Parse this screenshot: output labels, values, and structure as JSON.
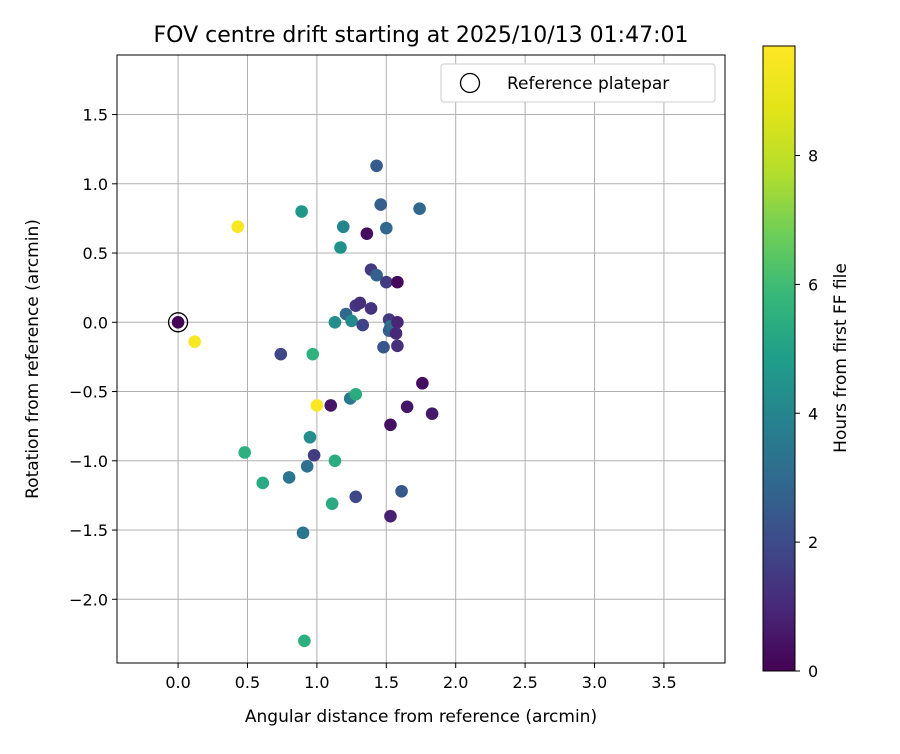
{
  "chart_data": {
    "type": "scatter",
    "title": "FOV centre drift starting at 2025/10/13 01:47:01",
    "xlabel": "Angular distance from reference (arcmin)",
    "ylabel": "Rotation from reference (arcmin)",
    "xlim": [
      -0.44,
      3.94
    ],
    "ylim": [
      -2.46,
      1.93
    ],
    "xticks": [
      "0.0",
      "0.5",
      "1.0",
      "1.5",
      "2.0",
      "2.5",
      "3.0",
      "3.5"
    ],
    "xtick_values": [
      0,
      0.5,
      1.0,
      1.5,
      2.0,
      2.5,
      3.0,
      3.5
    ],
    "yticks": [
      "1.5",
      "1.0",
      "0.5",
      "0.0",
      "−0.5",
      "−1.0",
      "−1.5",
      "−2.0"
    ],
    "ytick_values": [
      1.5,
      1.0,
      0.5,
      0.0,
      -0.5,
      -1.0,
      -1.5,
      -2.0
    ],
    "grid": true,
    "legend": {
      "placement": "top-right",
      "entries": [
        "Reference platepar"
      ]
    },
    "colorbar": {
      "label": "Hours from first FF file",
      "range": [
        0,
        9.7
      ],
      "ticks": [
        "0",
        "2",
        "4",
        "6",
        "8"
      ],
      "tick_values": [
        0,
        2,
        4,
        6,
        8
      ],
      "colormap": "viridis"
    },
    "reference_point": {
      "x": 0.0,
      "y": 0.0
    },
    "points": [
      {
        "x": 0.0,
        "y": 0.0,
        "hours": 0.0
      },
      {
        "x": 0.12,
        "y": -0.14,
        "hours": 9.6
      },
      {
        "x": 0.43,
        "y": 0.69,
        "hours": 9.5
      },
      {
        "x": 0.74,
        "y": -0.23,
        "hours": 1.9
      },
      {
        "x": 0.89,
        "y": 0.8,
        "hours": 4.6
      },
      {
        "x": 0.97,
        "y": -0.23,
        "hours": 5.6
      },
      {
        "x": 1.0,
        "y": -0.6,
        "hours": 9.6
      },
      {
        "x": 1.1,
        "y": -0.6,
        "hours": 0.5
      },
      {
        "x": 0.95,
        "y": -0.83,
        "hours": 4.3
      },
      {
        "x": 0.98,
        "y": -0.96,
        "hours": 1.6
      },
      {
        "x": 0.93,
        "y": -1.04,
        "hours": 3.2
      },
      {
        "x": 0.8,
        "y": -1.12,
        "hours": 3.4
      },
      {
        "x": 1.13,
        "y": -1.0,
        "hours": 5.4
      },
      {
        "x": 0.48,
        "y": -0.94,
        "hours": 5.5
      },
      {
        "x": 0.61,
        "y": -1.16,
        "hours": 5.3
      },
      {
        "x": 0.9,
        "y": -1.52,
        "hours": 3.4
      },
      {
        "x": 0.91,
        "y": -2.3,
        "hours": 5.5
      },
      {
        "x": 1.11,
        "y": -1.31,
        "hours": 5.3
      },
      {
        "x": 1.28,
        "y": -1.26,
        "hours": 1.9
      },
      {
        "x": 1.53,
        "y": -1.4,
        "hours": 0.8
      },
      {
        "x": 1.61,
        "y": -1.22,
        "hours": 2.4
      },
      {
        "x": 1.24,
        "y": -0.55,
        "hours": 3.6
      },
      {
        "x": 1.28,
        "y": -0.52,
        "hours": 5.4
      },
      {
        "x": 1.53,
        "y": -0.74,
        "hours": 0.4
      },
      {
        "x": 1.65,
        "y": -0.61,
        "hours": 0.5
      },
      {
        "x": 1.76,
        "y": -0.44,
        "hours": 0.3
      },
      {
        "x": 1.83,
        "y": -0.66,
        "hours": 0.6
      },
      {
        "x": 1.13,
        "y": 0.0,
        "hours": 4.3
      },
      {
        "x": 1.21,
        "y": 0.06,
        "hours": 2.9
      },
      {
        "x": 1.25,
        "y": 0.01,
        "hours": 4.2
      },
      {
        "x": 1.28,
        "y": 0.12,
        "hours": 1.4
      },
      {
        "x": 1.31,
        "y": 0.14,
        "hours": 1.2
      },
      {
        "x": 1.33,
        "y": -0.02,
        "hours": 1.8
      },
      {
        "x": 1.39,
        "y": 0.1,
        "hours": 1.3
      },
      {
        "x": 1.17,
        "y": 0.54,
        "hours": 4.4
      },
      {
        "x": 1.19,
        "y": 0.69,
        "hours": 4.0
      },
      {
        "x": 1.36,
        "y": 0.64,
        "hours": 0.3
      },
      {
        "x": 1.39,
        "y": 0.38,
        "hours": 1.5
      },
      {
        "x": 1.43,
        "y": 0.34,
        "hours": 2.7
      },
      {
        "x": 1.43,
        "y": 1.13,
        "hours": 2.5
      },
      {
        "x": 1.46,
        "y": 0.85,
        "hours": 2.6
      },
      {
        "x": 1.5,
        "y": 0.68,
        "hours": 2.9
      },
      {
        "x": 1.5,
        "y": 0.29,
        "hours": 1.6
      },
      {
        "x": 1.58,
        "y": 0.29,
        "hours": 0.2
      },
      {
        "x": 1.74,
        "y": 0.82,
        "hours": 2.9
      },
      {
        "x": 1.52,
        "y": 0.02,
        "hours": 1.5
      },
      {
        "x": 1.53,
        "y": -0.03,
        "hours": 3.6
      },
      {
        "x": 1.52,
        "y": -0.06,
        "hours": 2.6
      },
      {
        "x": 1.55,
        "y": -0.04,
        "hours": 3.1
      },
      {
        "x": 1.58,
        "y": 0.0,
        "hours": 0.9
      },
      {
        "x": 1.57,
        "y": -0.08,
        "hours": 1.0
      },
      {
        "x": 1.48,
        "y": -0.18,
        "hours": 2.3
      },
      {
        "x": 1.58,
        "y": -0.17,
        "hours": 1.2
      }
    ]
  }
}
